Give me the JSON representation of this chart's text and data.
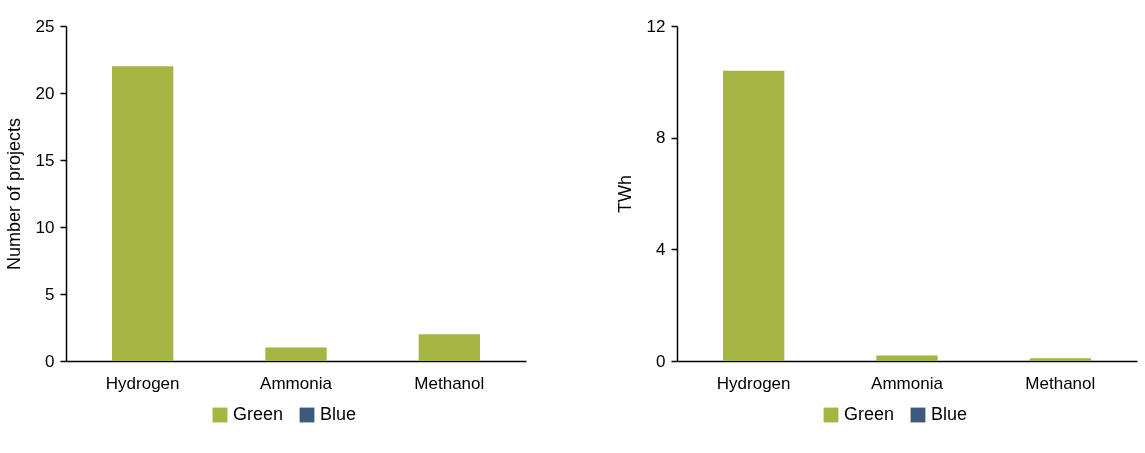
{
  "chart_data": [
    {
      "type": "bar",
      "stacked": true,
      "categories": [
        "Hydrogen",
        "Ammonia",
        "Methanol"
      ],
      "ylabel": "Number of projects",
      "ylim": [
        0,
        25
      ],
      "yticks": [
        0,
        5,
        10,
        15,
        20,
        25
      ],
      "grid": false,
      "legend": "bottom",
      "series": [
        {
          "name": "Green",
          "color": "#a5b443",
          "values": [
            22,
            1,
            2
          ]
        },
        {
          "name": "Blue",
          "color": "#3e5a7a",
          "values": [
            0,
            0,
            0
          ]
        }
      ]
    },
    {
      "type": "bar",
      "stacked": true,
      "categories": [
        "Hydrogen",
        "Ammonia",
        "Methanol"
      ],
      "ylabel": "TWh",
      "ylim": [
        0,
        12
      ],
      "yticks": [
        0,
        4,
        8,
        12
      ],
      "grid": false,
      "legend": "bottom",
      "series": [
        {
          "name": "Green",
          "color": "#a5b443",
          "values": [
            10.4,
            0.2,
            0.1
          ]
        },
        {
          "name": "Blue",
          "color": "#3e5a7a",
          "values": [
            0,
            0,
            0
          ]
        }
      ]
    }
  ]
}
